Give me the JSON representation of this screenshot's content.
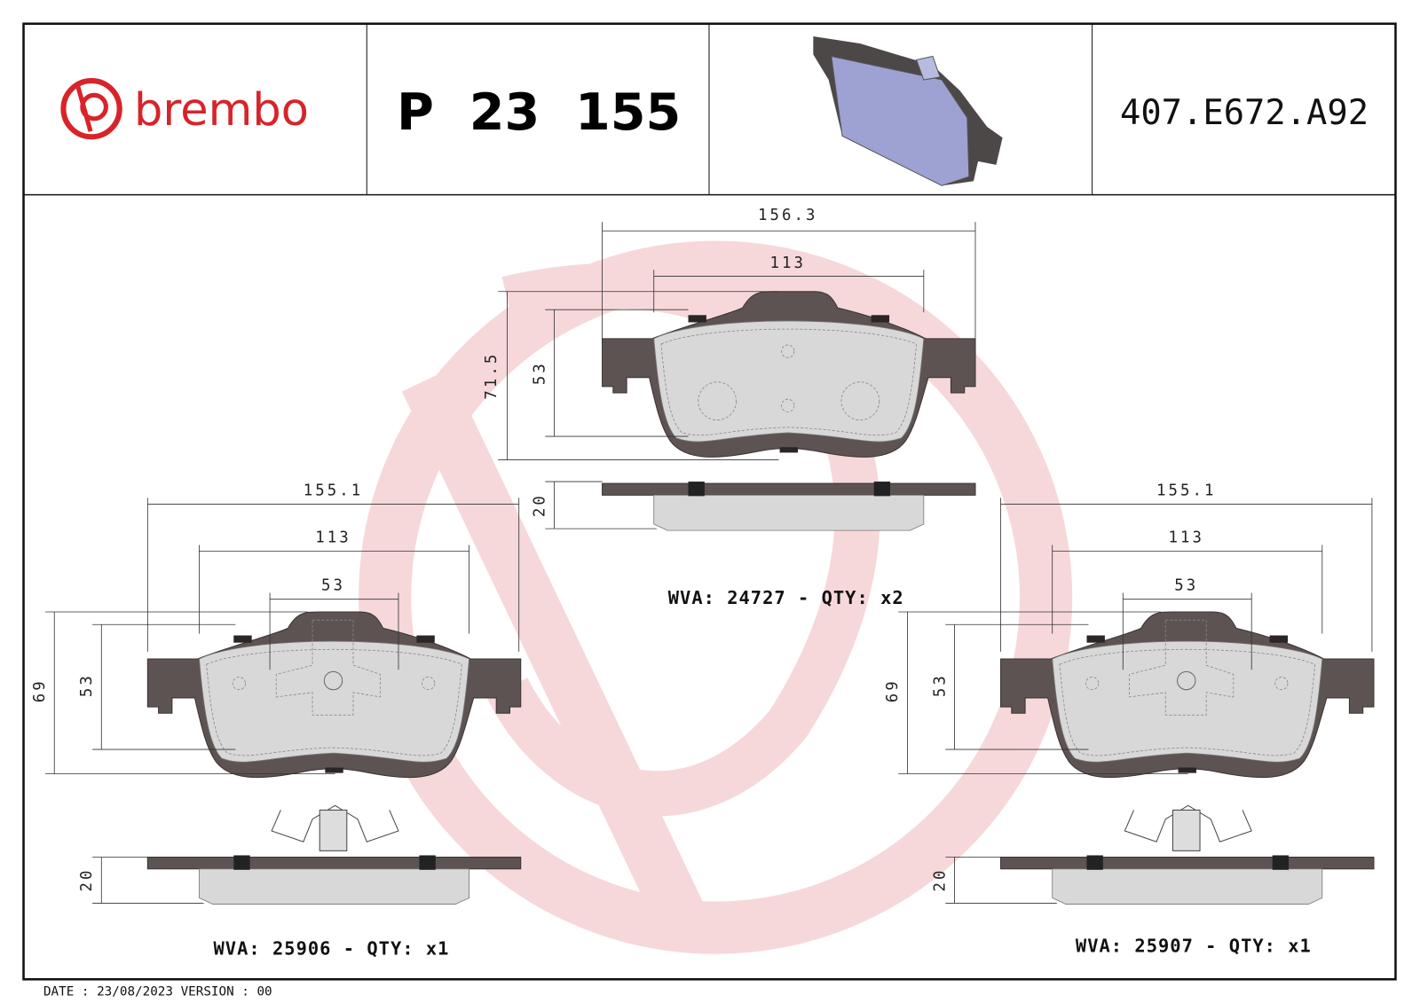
{
  "header": {
    "brand": "brembo",
    "product_code": "P  23  155",
    "reference": "407.E672.A92"
  },
  "colors": {
    "brand_red": "#d7242a",
    "watermark": "#f6d4d6",
    "backing_plate": "#5e5353",
    "friction": "#d8d8d8",
    "preview_pad": "#9ea2d2"
  },
  "drawings": {
    "top": {
      "width_total": "156.3",
      "width_inner": "113",
      "height_total": "71.5",
      "height_friction": "53",
      "thickness": "20",
      "caption": "WVA: 24727 - QTY: x2"
    },
    "left": {
      "width_total": "155.1",
      "width_inner": "113",
      "width_center": "53",
      "height_total": "69",
      "height_friction": "53",
      "thickness": "20",
      "caption": "WVA: 25906 - QTY: x1"
    },
    "right": {
      "width_total": "155.1",
      "width_inner": "113",
      "width_center": "53",
      "height_total": "69",
      "height_friction": "53",
      "thickness": "20",
      "caption": "WVA: 25907 - QTY: x1"
    }
  },
  "footer": {
    "text": "DATE : 23/08/2023 VERSION : 00"
  }
}
